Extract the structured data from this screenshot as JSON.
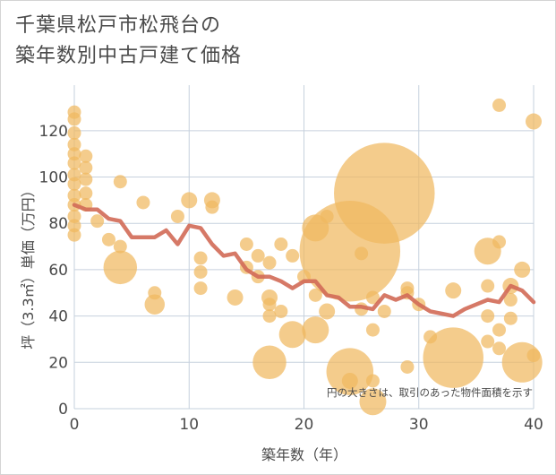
{
  "title": {
    "line1": "千葉県松戸市松飛台の",
    "line2": "築年数別中古戸建て価格"
  },
  "colors": {
    "bubble": "#f0b860",
    "trend": "#d26a56",
    "grid": "#c6d1dd",
    "axis_text": "#4a4a4a"
  },
  "chart_data": {
    "type": "scatter",
    "title": "千葉県松戸市松飛台の 築年数別中古戸建て価格",
    "xlabel": "築年数（年）",
    "ylabel": "坪（3.3㎡）単価（万円）",
    "xlim": [
      0,
      40
    ],
    "ylim": [
      0,
      130
    ],
    "x_ticks": [
      0,
      10,
      20,
      30,
      40
    ],
    "y_ticks": [
      0,
      20,
      40,
      60,
      80,
      100,
      120
    ],
    "note": "円の大きさは、取引のあった物件面積を示す",
    "grid": true,
    "points": [
      {
        "x": 0,
        "y": 128,
        "size": 1
      },
      {
        "x": 0,
        "y": 125,
        "size": 1
      },
      {
        "x": 0,
        "y": 119,
        "size": 1
      },
      {
        "x": 0,
        "y": 114,
        "size": 1
      },
      {
        "x": 0,
        "y": 110,
        "size": 1
      },
      {
        "x": 0,
        "y": 106,
        "size": 1
      },
      {
        "x": 0,
        "y": 101,
        "size": 1
      },
      {
        "x": 0,
        "y": 97,
        "size": 1
      },
      {
        "x": 0,
        "y": 92,
        "size": 1
      },
      {
        "x": 0,
        "y": 88,
        "size": 1
      },
      {
        "x": 0,
        "y": 83,
        "size": 1
      },
      {
        "x": 0,
        "y": 79,
        "size": 1
      },
      {
        "x": 0,
        "y": 75,
        "size": 1
      },
      {
        "x": 1,
        "y": 109,
        "size": 1
      },
      {
        "x": 1,
        "y": 104,
        "size": 1
      },
      {
        "x": 1,
        "y": 99,
        "size": 1
      },
      {
        "x": 1,
        "y": 93,
        "size": 1
      },
      {
        "x": 1,
        "y": 88,
        "size": 1
      },
      {
        "x": 2,
        "y": 81,
        "size": 1
      },
      {
        "x": 3,
        "y": 73,
        "size": 1
      },
      {
        "x": 4,
        "y": 98,
        "size": 1
      },
      {
        "x": 4,
        "y": 70,
        "size": 1
      },
      {
        "x": 4,
        "y": 61,
        "size": 2.5
      },
      {
        "x": 6,
        "y": 89,
        "size": 1
      },
      {
        "x": 7,
        "y": 50,
        "size": 1
      },
      {
        "x": 7,
        "y": 45,
        "size": 1.5
      },
      {
        "x": 9,
        "y": 83,
        "size": 1
      },
      {
        "x": 10,
        "y": 90,
        "size": 1.2
      },
      {
        "x": 11,
        "y": 65,
        "size": 1
      },
      {
        "x": 11,
        "y": 59,
        "size": 1
      },
      {
        "x": 11,
        "y": 52,
        "size": 1
      },
      {
        "x": 12,
        "y": 90,
        "size": 1.2
      },
      {
        "x": 12,
        "y": 87,
        "size": 1
      },
      {
        "x": 14,
        "y": 48,
        "size": 1.2
      },
      {
        "x": 15,
        "y": 71,
        "size": 1
      },
      {
        "x": 15,
        "y": 61,
        "size": 1
      },
      {
        "x": 16,
        "y": 66,
        "size": 1
      },
      {
        "x": 16,
        "y": 57,
        "size": 1
      },
      {
        "x": 17,
        "y": 63,
        "size": 1
      },
      {
        "x": 17,
        "y": 48,
        "size": 1.2
      },
      {
        "x": 17,
        "y": 45,
        "size": 1
      },
      {
        "x": 17,
        "y": 40,
        "size": 1
      },
      {
        "x": 17,
        "y": 20,
        "size": 2.5
      },
      {
        "x": 18,
        "y": 71,
        "size": 1
      },
      {
        "x": 18,
        "y": 42,
        "size": 1
      },
      {
        "x": 19,
        "y": 66,
        "size": 1
      },
      {
        "x": 19,
        "y": 32,
        "size": 2
      },
      {
        "x": 20,
        "y": 57,
        "size": 1
      },
      {
        "x": 21,
        "y": 78,
        "size": 2
      },
      {
        "x": 21,
        "y": 49,
        "size": 1
      },
      {
        "x": 21,
        "y": 34,
        "size": 2
      },
      {
        "x": 22,
        "y": 83,
        "size": 1
      },
      {
        "x": 22,
        "y": 42,
        "size": 1.2
      },
      {
        "x": 24,
        "y": 68,
        "size": 7.5
      },
      {
        "x": 24,
        "y": 16,
        "size": 3.5
      },
      {
        "x": 24,
        "y": 12,
        "size": 1.2
      },
      {
        "x": 25,
        "y": 67,
        "size": 1
      },
      {
        "x": 25,
        "y": 43,
        "size": 1
      },
      {
        "x": 26,
        "y": 48,
        "size": 1
      },
      {
        "x": 26,
        "y": 34,
        "size": 1
      },
      {
        "x": 26,
        "y": 12,
        "size": 1
      },
      {
        "x": 26,
        "y": 3,
        "size": 2
      },
      {
        "x": 27,
        "y": 93,
        "size": 7.5
      },
      {
        "x": 27,
        "y": 42,
        "size": 1
      },
      {
        "x": 29,
        "y": 52,
        "size": 1
      },
      {
        "x": 29,
        "y": 50,
        "size": 1
      },
      {
        "x": 29,
        "y": 18,
        "size": 1
      },
      {
        "x": 30,
        "y": 45,
        "size": 1
      },
      {
        "x": 31,
        "y": 31,
        "size": 1
      },
      {
        "x": 33,
        "y": 51,
        "size": 1.2
      },
      {
        "x": 33,
        "y": 22,
        "size": 4.5
      },
      {
        "x": 36,
        "y": 68,
        "size": 2
      },
      {
        "x": 36,
        "y": 53,
        "size": 1
      },
      {
        "x": 36,
        "y": 40,
        "size": 1
      },
      {
        "x": 36,
        "y": 29,
        "size": 1
      },
      {
        "x": 37,
        "y": 131,
        "size": 1
      },
      {
        "x": 37,
        "y": 72,
        "size": 1
      },
      {
        "x": 37,
        "y": 34,
        "size": 1
      },
      {
        "x": 37,
        "y": 26,
        "size": 1
      },
      {
        "x": 38,
        "y": 53,
        "size": 1.2
      },
      {
        "x": 38,
        "y": 47,
        "size": 1
      },
      {
        "x": 38,
        "y": 39,
        "size": 1
      },
      {
        "x": 39,
        "y": 60,
        "size": 1.2
      },
      {
        "x": 39,
        "y": 20,
        "size": 3
      },
      {
        "x": 40,
        "y": 124,
        "size": 1.2
      },
      {
        "x": 40,
        "y": 23,
        "size": 1
      }
    ],
    "series": [
      {
        "type": "line",
        "x": [
          0,
          1,
          2,
          3,
          4,
          5,
          6,
          7,
          8,
          9,
          10,
          11,
          12,
          13,
          14,
          15,
          16,
          17,
          18,
          19,
          20,
          21,
          22,
          23,
          24,
          25,
          26,
          27,
          28,
          29,
          30,
          31,
          32,
          33,
          34,
          35,
          36,
          37,
          38,
          39,
          40
        ],
        "values": [
          88,
          86,
          86,
          82,
          81,
          74,
          74,
          74,
          77,
          71,
          79,
          78,
          71,
          66,
          67,
          60,
          57,
          57,
          55,
          52,
          55,
          55,
          49,
          48,
          44,
          44,
          43,
          49,
          47,
          49,
          45,
          42,
          41,
          40,
          43,
          45,
          47,
          46,
          53,
          51,
          46
        ]
      }
    ]
  }
}
